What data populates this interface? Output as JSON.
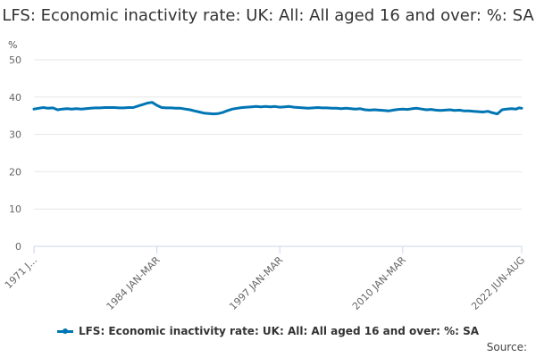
{
  "chart_data": {
    "type": "line",
    "title": "LFS: Economic inactivity rate: UK: All: All aged 16 and over: %: SA",
    "ylabel": "%",
    "xlabel": "",
    "ylim": [
      0,
      50
    ],
    "yticks": [
      0,
      10,
      20,
      30,
      40,
      50
    ],
    "xlim": [
      1971,
      2022.583
    ],
    "xtick_labels": [
      {
        "label": "1971 J...",
        "year": 1971.0
      },
      {
        "label": "1984 JAN-MAR",
        "year": 1984.0
      },
      {
        "label": "1997 JAN-MAR",
        "year": 1997.0
      },
      {
        "label": "2010 JAN-MAR",
        "year": 2010.0
      },
      {
        "label": "2022 JUN-AUG",
        "year": 2022.583
      }
    ],
    "grid": true,
    "legend_position": "bottom",
    "series": [
      {
        "name": "LFS: Economic inactivity rate: UK: All: All aged 16 and over: %: SA",
        "color": "#0075B4",
        "points": [
          [
            1971.0,
            36.8
          ],
          [
            1971.5,
            37.0
          ],
          [
            1972.0,
            37.2
          ],
          [
            1972.5,
            37.0
          ],
          [
            1973.0,
            37.1
          ],
          [
            1973.5,
            36.6
          ],
          [
            1974.0,
            36.8
          ],
          [
            1974.5,
            36.9
          ],
          [
            1975.0,
            36.8
          ],
          [
            1975.5,
            36.9
          ],
          [
            1976.0,
            36.8
          ],
          [
            1976.5,
            36.9
          ],
          [
            1977.0,
            37.0
          ],
          [
            1977.5,
            37.1
          ],
          [
            1978.0,
            37.1
          ],
          [
            1978.5,
            37.2
          ],
          [
            1979.0,
            37.2
          ],
          [
            1979.5,
            37.2
          ],
          [
            1980.0,
            37.1
          ],
          [
            1980.5,
            37.1
          ],
          [
            1981.0,
            37.2
          ],
          [
            1981.5,
            37.2
          ],
          [
            1982.0,
            37.6
          ],
          [
            1982.5,
            38.0
          ],
          [
            1983.0,
            38.4
          ],
          [
            1983.5,
            38.6
          ],
          [
            1984.0,
            37.8
          ],
          [
            1984.5,
            37.2
          ],
          [
            1985.0,
            37.1
          ],
          [
            1985.5,
            37.1
          ],
          [
            1986.0,
            37.0
          ],
          [
            1986.5,
            37.0
          ],
          [
            1987.0,
            36.8
          ],
          [
            1987.5,
            36.6
          ],
          [
            1988.0,
            36.3
          ],
          [
            1988.5,
            36.0
          ],
          [
            1989.0,
            35.7
          ],
          [
            1989.5,
            35.6
          ],
          [
            1990.0,
            35.5
          ],
          [
            1990.5,
            35.6
          ],
          [
            1991.0,
            35.9
          ],
          [
            1991.5,
            36.4
          ],
          [
            1992.0,
            36.8
          ],
          [
            1992.5,
            37.0
          ],
          [
            1993.0,
            37.2
          ],
          [
            1993.5,
            37.3
          ],
          [
            1994.0,
            37.4
          ],
          [
            1994.5,
            37.5
          ],
          [
            1995.0,
            37.4
          ],
          [
            1995.5,
            37.5
          ],
          [
            1996.0,
            37.4
          ],
          [
            1996.5,
            37.5
          ],
          [
            1997.0,
            37.3
          ],
          [
            1997.5,
            37.4
          ],
          [
            1998.0,
            37.5
          ],
          [
            1998.5,
            37.3
          ],
          [
            1999.0,
            37.2
          ],
          [
            1999.5,
            37.1
          ],
          [
            2000.0,
            37.0
          ],
          [
            2000.5,
            37.1
          ],
          [
            2001.0,
            37.2
          ],
          [
            2001.5,
            37.1
          ],
          [
            2002.0,
            37.1
          ],
          [
            2002.5,
            37.0
          ],
          [
            2003.0,
            37.0
          ],
          [
            2003.5,
            36.9
          ],
          [
            2004.0,
            37.0
          ],
          [
            2004.5,
            36.9
          ],
          [
            2005.0,
            36.8
          ],
          [
            2005.5,
            36.9
          ],
          [
            2006.0,
            36.6
          ],
          [
            2006.5,
            36.5
          ],
          [
            2007.0,
            36.6
          ],
          [
            2007.5,
            36.5
          ],
          [
            2008.0,
            36.4
          ],
          [
            2008.5,
            36.3
          ],
          [
            2009.0,
            36.5
          ],
          [
            2009.5,
            36.7
          ],
          [
            2010.0,
            36.8
          ],
          [
            2010.5,
            36.7
          ],
          [
            2011.0,
            36.9
          ],
          [
            2011.5,
            37.0
          ],
          [
            2012.0,
            36.8
          ],
          [
            2012.5,
            36.6
          ],
          [
            2013.0,
            36.7
          ],
          [
            2013.5,
            36.5
          ],
          [
            2014.0,
            36.4
          ],
          [
            2014.5,
            36.5
          ],
          [
            2015.0,
            36.6
          ],
          [
            2015.5,
            36.4
          ],
          [
            2016.0,
            36.5
          ],
          [
            2016.5,
            36.3
          ],
          [
            2017.0,
            36.3
          ],
          [
            2017.5,
            36.2
          ],
          [
            2018.0,
            36.1
          ],
          [
            2018.5,
            36.0
          ],
          [
            2019.0,
            36.2
          ],
          [
            2019.5,
            35.8
          ],
          [
            2020.0,
            35.5
          ],
          [
            2020.5,
            36.6
          ],
          [
            2021.0,
            36.8
          ],
          [
            2021.5,
            36.9
          ],
          [
            2022.0,
            36.8
          ],
          [
            2022.3,
            37.1
          ],
          [
            2022.583,
            37.0
          ]
        ]
      }
    ],
    "source_label": "Source:"
  }
}
